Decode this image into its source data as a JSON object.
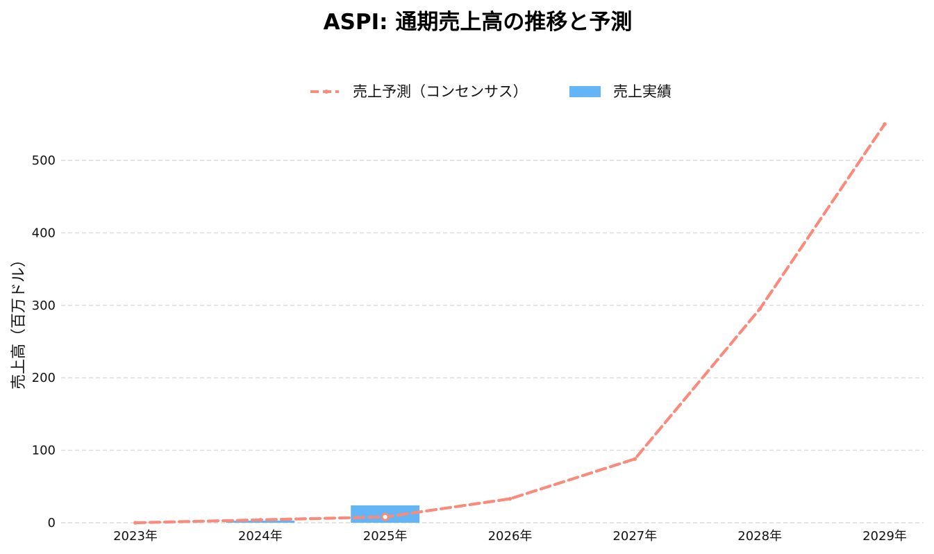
{
  "chart_data": {
    "type": "bar",
    "title": "ASPI: 通期売上高の推移と予測",
    "xlabel": "",
    "ylabel": "売上高（百万ドル）",
    "categories": [
      "2023年",
      "2024年",
      "2025年",
      "2026年",
      "2027年",
      "2028年",
      "2029年"
    ],
    "ylim": [
      0,
      565
    ],
    "yticks": [
      0,
      100,
      200,
      300,
      400,
      500
    ],
    "grid": true,
    "legend_position": "top-center",
    "series": [
      {
        "name": "売上予測（コンセンサス）",
        "type": "line",
        "style": "dashed",
        "color": "#f98b7d",
        "values": [
          0,
          4,
          8,
          33,
          88,
          295,
          550
        ]
      },
      {
        "name": "売上実績",
        "type": "bar",
        "color": "#64b5f6",
        "values": [
          null,
          3,
          24,
          null,
          null,
          null,
          null
        ]
      }
    ]
  }
}
